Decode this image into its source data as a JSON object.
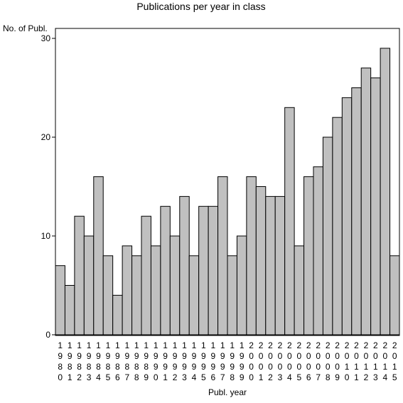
{
  "chart_data": {
    "type": "bar",
    "title": "Publications per year in class",
    "ylabel": "No. of Publ.",
    "xlabel": "Publ. year",
    "categories": [
      "1980",
      "1981",
      "1982",
      "1983",
      "1984",
      "1985",
      "1986",
      "1987",
      "1988",
      "1989",
      "1990",
      "1991",
      "1992",
      "1993",
      "1994",
      "1995",
      "1996",
      "1997",
      "1998",
      "1999",
      "2000",
      "2001",
      "2002",
      "2003",
      "2004",
      "2005",
      "2006",
      "2007",
      "2008",
      "2009",
      "2010",
      "2011",
      "2012",
      "2013",
      "2014",
      "2015"
    ],
    "values": [
      7,
      5,
      12,
      10,
      16,
      8,
      4,
      9,
      8,
      12,
      9,
      13,
      10,
      14,
      8,
      13,
      13,
      16,
      8,
      10,
      16,
      15,
      14,
      14,
      23,
      9,
      16,
      17,
      20,
      22,
      24,
      25,
      27,
      26,
      29,
      8
    ],
    "ylim": [
      0,
      30
    ],
    "yticks": [
      0,
      10,
      20,
      30
    ],
    "grid": false,
    "bar_color": "#c0c0c0",
    "edge_color": "#000000"
  }
}
